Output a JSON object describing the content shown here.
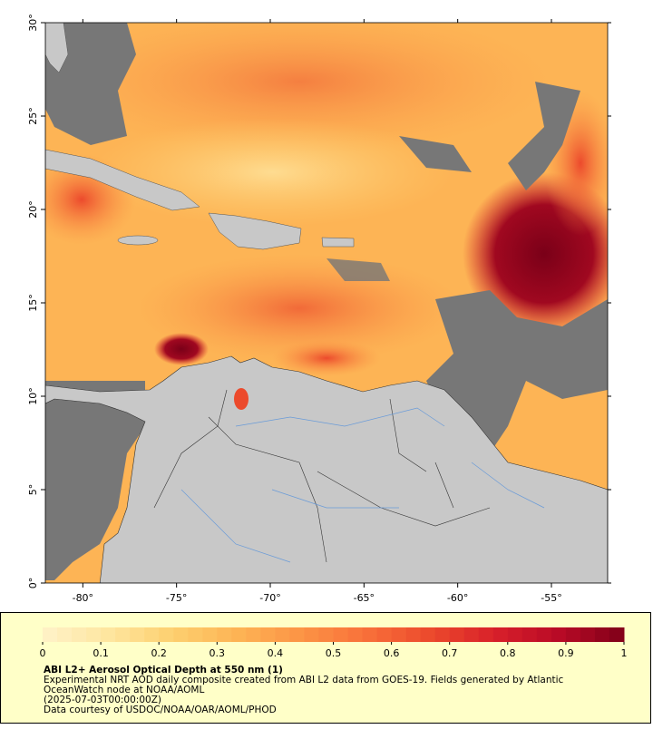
{
  "map": {
    "xlim": [
      -82,
      -52
    ],
    "ylim": [
      0,
      30
    ],
    "xticks": [
      {
        "value": -80,
        "label": "-80°"
      },
      {
        "value": -75,
        "label": "-75°"
      },
      {
        "value": -70,
        "label": "-70°"
      },
      {
        "value": -65,
        "label": "-65°"
      },
      {
        "value": -60,
        "label": "-60°"
      },
      {
        "value": -55,
        "label": "-55°"
      }
    ],
    "yticks": [
      {
        "value": 0,
        "label": "0°"
      },
      {
        "value": 5,
        "label": "5°"
      },
      {
        "value": 10,
        "label": "10°"
      },
      {
        "value": 15,
        "label": "15°"
      },
      {
        "value": 20,
        "label": "20°"
      },
      {
        "value": 25,
        "label": "25°"
      },
      {
        "value": 30,
        "label": "30°"
      }
    ]
  },
  "colorbar": {
    "lim": [
      0,
      1
    ],
    "ticks": [
      0,
      0.1,
      0.2,
      0.3,
      0.4,
      0.5,
      0.6,
      0.7,
      0.8,
      0.9,
      1
    ],
    "colormap": [
      "#fff2c8",
      "#fee6a0",
      "#fdd070",
      "#fdb455",
      "#fc9445",
      "#f8703a",
      "#ec4a2c",
      "#d8202a",
      "#b80a26",
      "#800018"
    ],
    "bins": 40
  },
  "caption": {
    "title": "ABI L2+ Aerosol Optical Depth at 550 nm (1)",
    "lines": [
      "Experimental NRT AOD daily composite created from ABI L2 data from GOES-19. Fields generated by Atlantic",
      "OceanWatch node at NOAA/AOML",
      "(2025-07-03T00:00:00Z)",
      "Data courtesy of USDOC/NOAA/OAR/AOML/PHOD"
    ]
  }
}
